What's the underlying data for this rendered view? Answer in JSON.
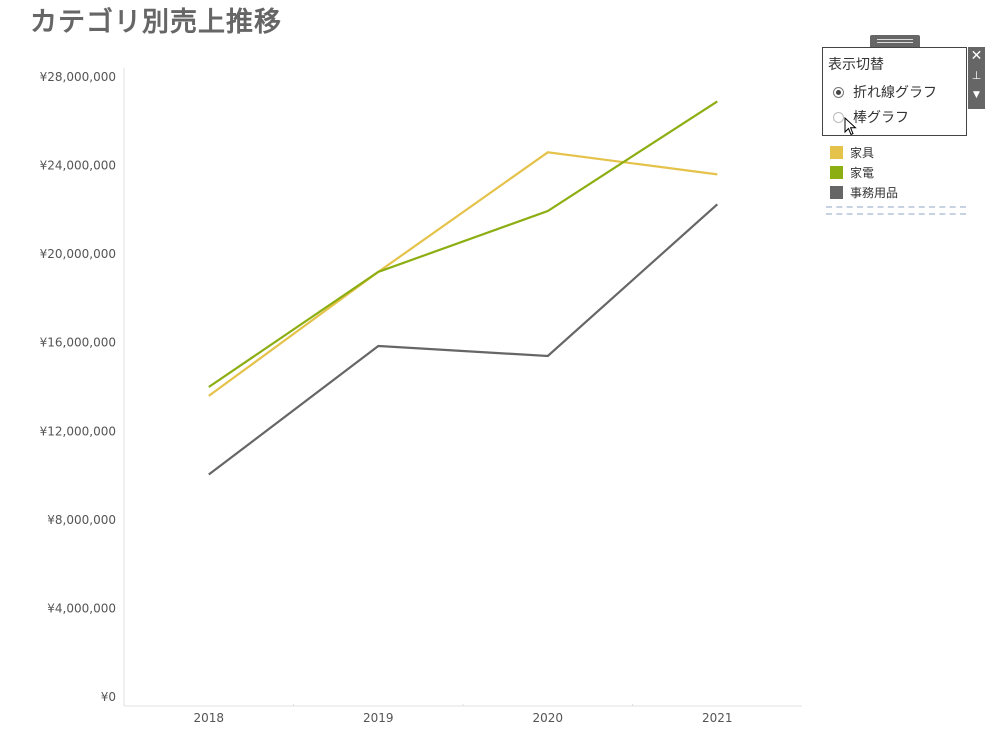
{
  "title": "カテゴリ別売上推移",
  "chart_data": {
    "type": "line",
    "x": [
      "2018",
      "2019",
      "2020",
      "2021"
    ],
    "series": [
      {
        "name": "家具",
        "color": "#e5c24a",
        "values": [
          13600000,
          19200000,
          24600000,
          23600000
        ]
      },
      {
        "name": "家電",
        "color": "#8cae12",
        "values": [
          14000000,
          19200000,
          21950000,
          26900000
        ]
      },
      {
        "name": "事務用品",
        "color": "#666666",
        "values": [
          10050000,
          15850000,
          15400000,
          22250000
        ]
      }
    ],
    "y_ticks": [
      "¥0",
      "¥4,000,000",
      "¥8,000,000",
      "¥12,000,000",
      "¥16,000,000",
      "¥20,000,000",
      "¥24,000,000",
      "¥28,000,000"
    ],
    "y_tick_values": [
      0,
      4000000,
      8000000,
      12000000,
      16000000,
      20000000,
      24000000,
      28000000
    ],
    "ylim": [
      0,
      28000000
    ],
    "grid": false,
    "legend": "right"
  },
  "param_control": {
    "title": "表示切替",
    "options": [
      {
        "label": "折れ線グラフ",
        "checked": true
      },
      {
        "label": "棒グラフ",
        "checked": false
      }
    ]
  },
  "toolbar": {
    "close_glyph": "✕",
    "pin_glyph": "⊥",
    "menu_glyph": "▼"
  },
  "legend": {
    "items": [
      {
        "label": "家具",
        "color": "#e5c24a"
      },
      {
        "label": "家電",
        "color": "#8cae12"
      },
      {
        "label": "事務用品",
        "color": "#666666"
      }
    ]
  }
}
